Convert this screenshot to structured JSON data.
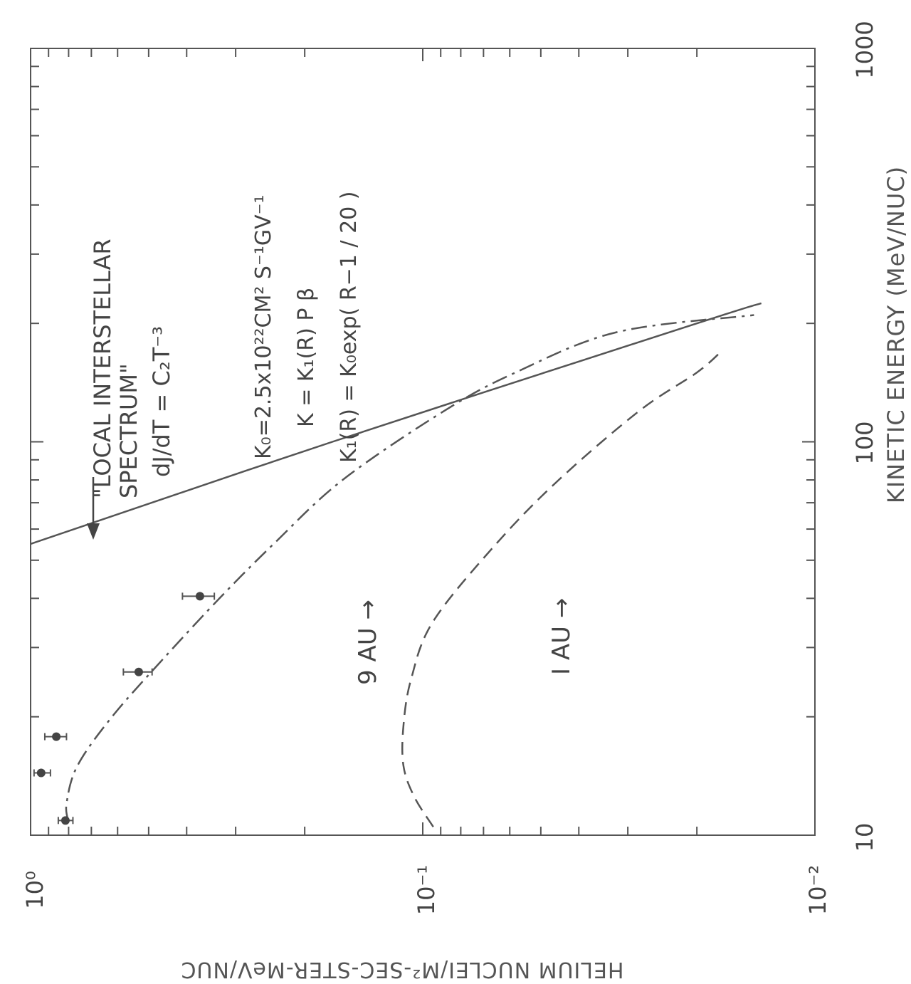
{
  "chart_data": {
    "type": "line",
    "orientation": "rotated 90 degrees clockwise (energy axis vertical, flux axis horizontal)",
    "xlabel": "KINETIC ENERGY (MeV/NUC)",
    "ylabel": "HELIUM NUCLEI/M²-SEC-STER-MeV/NUC",
    "x_scale": "log",
    "y_scale": "log",
    "xlim": [
      10,
      1000
    ],
    "ylim": [
      0.01,
      1
    ],
    "x_tick_labels": [
      "10",
      "100",
      "1000"
    ],
    "y_tick_labels": [
      "10⁰",
      "10⁻¹",
      "10⁻²"
    ],
    "grid": false,
    "series": [
      {
        "name": "\"LOCAL INTERSTELLAR SPECTRUM\"",
        "style": "solid",
        "points": [
          [
            55,
            1.0
          ],
          [
            100,
            0.17
          ],
          [
            200,
            0.02
          ],
          [
            225,
            0.0137
          ]
        ]
      },
      {
        "name": "9 AU",
        "style": "dash-dot",
        "points": [
          [
            10.8,
            0.8
          ],
          [
            12,
            0.81
          ],
          [
            15,
            0.76
          ],
          [
            20,
            0.62
          ],
          [
            28,
            0.46
          ],
          [
            40,
            0.33
          ],
          [
            55,
            0.24
          ],
          [
            80,
            0.16
          ],
          [
            120,
            0.088
          ],
          [
            150,
            0.058
          ],
          [
            190,
            0.032
          ],
          [
            210,
            0.0143
          ]
        ]
      },
      {
        "name": "1 AU",
        "style": "dashed",
        "points": [
          [
            10.5,
            0.094
          ],
          [
            12.5,
            0.105
          ],
          [
            15,
            0.112
          ],
          [
            19,
            0.112
          ],
          [
            25,
            0.107
          ],
          [
            35,
            0.094
          ],
          [
            55,
            0.065
          ],
          [
            80,
            0.045
          ],
          [
            120,
            0.028
          ],
          [
            150,
            0.02
          ],
          [
            170,
            0.0173
          ]
        ]
      }
    ],
    "data_points": [
      {
        "x": 10.9,
        "y": 0.815,
        "yerr_low": 0.78,
        "yerr_high": 0.85
      },
      {
        "x": 14.4,
        "y": 0.94,
        "yerr_low": 0.89,
        "yerr_high": 0.98
      },
      {
        "x": 17.8,
        "y": 0.86,
        "yerr_low": 0.81,
        "yerr_high": 0.92
      },
      {
        "x": 26,
        "y": 0.53,
        "yerr_low": 0.49,
        "yerr_high": 0.58
      },
      {
        "x": 40.5,
        "y": 0.37,
        "yerr_low": 0.34,
        "yerr_high": 0.41
      }
    ],
    "annotations": [
      {
        "lines": [
          "\"LOCAL INTERSTELLAR",
          "SPECTRUM\""
        ],
        "arrow": "down"
      },
      {
        "lines": [
          "dJ/dT = C₂T⁻³"
        ]
      },
      {
        "lines": [
          "K₀=2.5x10²²CM² S⁻¹GV⁻¹"
        ]
      },
      {
        "lines": [
          "K = K₁(R) P β"
        ]
      },
      {
        "lines": [
          "K₁(R) = K₀exp( R−1 / 20 )"
        ]
      },
      {
        "lines": [
          "9 AU →"
        ]
      },
      {
        "lines": [
          "I AU →"
        ]
      }
    ]
  }
}
